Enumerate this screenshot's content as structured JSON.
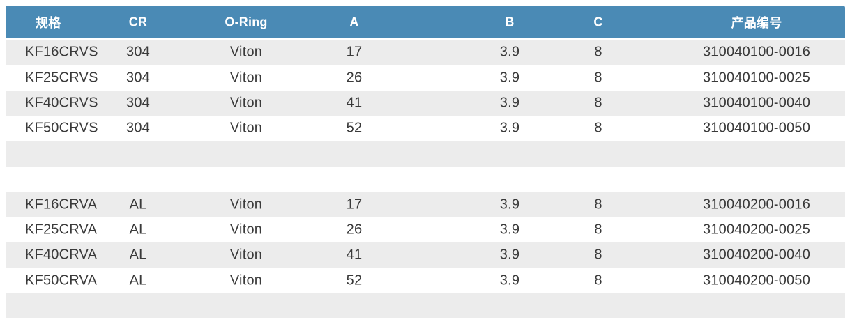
{
  "colors": {
    "header_bg": "#4a8ab5",
    "header_text": "#ffffff",
    "zebra_row_bg": "#ececec",
    "row_bg": "#ffffff",
    "body_text": "#3a3a3a"
  },
  "table": {
    "column_ids": [
      "spec",
      "cr",
      "oring",
      "a",
      "b",
      "c",
      "product-no"
    ],
    "columns": [
      "规格",
      "CR",
      "O-Ring",
      "A",
      "B",
      "C",
      "产品编号"
    ],
    "rows": [
      {
        "cells": [
          "KF16CRVS",
          "304",
          "Viton",
          "17",
          "3.9",
          "8",
          "310040100-0016"
        ]
      },
      {
        "cells": [
          "KF25CRVS",
          "304",
          "Viton",
          "26",
          "3.9",
          "8",
          "310040100-0025"
        ]
      },
      {
        "cells": [
          "KF40CRVS",
          "304",
          "Viton",
          "41",
          "3.9",
          "8",
          "310040100-0040"
        ]
      },
      {
        "cells": [
          "KF50CRVS",
          "304",
          "Viton",
          "52",
          "3.9",
          "8",
          "310040100-0050"
        ]
      },
      {
        "cells": [
          "",
          "",
          "",
          "",
          "",
          "",
          ""
        ]
      },
      {
        "cells": [
          "",
          "",
          "",
          "",
          "",
          "",
          ""
        ]
      },
      {
        "cells": [
          "KF16CRVA",
          "AL",
          "Viton",
          "17",
          "3.9",
          "8",
          "310040200-0016"
        ]
      },
      {
        "cells": [
          "KF25CRVA",
          "AL",
          "Viton",
          "26",
          "3.9",
          "8",
          "310040200-0025"
        ]
      },
      {
        "cells": [
          "KF40CRVA",
          "AL",
          "Viton",
          "41",
          "3.9",
          "8",
          "310040200-0040"
        ]
      },
      {
        "cells": [
          "KF50CRVA",
          "AL",
          "Viton",
          "52",
          "3.9",
          "8",
          "310040200-0050"
        ]
      },
      {
        "cells": [
          "",
          "",
          "",
          "",
          "",
          "",
          ""
        ]
      }
    ]
  }
}
